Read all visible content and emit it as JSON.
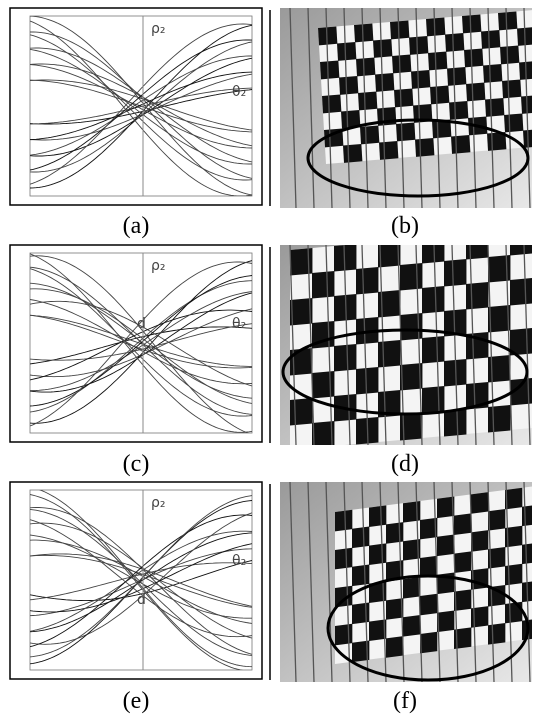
{
  "panels": [
    {
      "label": "(a)",
      "axis_label": "ρ₂",
      "curve_label": "θ₂"
    },
    {
      "label": "(b)"
    },
    {
      "label": "(c)",
      "axis_label": "ρ₂",
      "curve_label": "θ₂",
      "point_label": "d"
    },
    {
      "label": "(d)"
    },
    {
      "label": "(e)",
      "axis_label": "ρ₂",
      "curve_label": "θ₂",
      "point_label": "d"
    },
    {
      "label": "(f)"
    }
  ]
}
